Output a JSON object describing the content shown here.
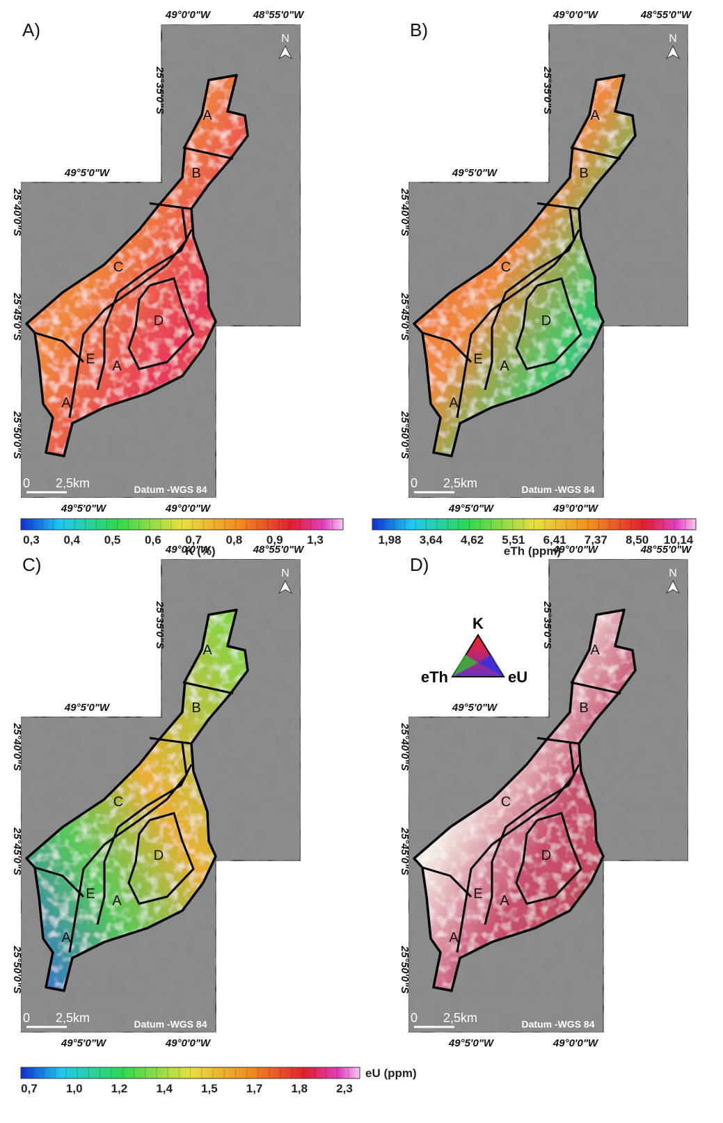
{
  "panels": [
    {
      "label": "A)",
      "top": [
        "49°0'0\"W",
        "48°55'0\"W"
      ],
      "inner_lon": "49°5'0\"W",
      "lat_right": "25°35'0\"S",
      "lat_left": [
        "25°40'0\"S",
        "25°45'0\"S",
        "25°50'0\"S"
      ],
      "bottom": [
        "49°5'0\"W",
        "49°0'0\"W"
      ],
      "scale": [
        "0",
        "2,5km"
      ],
      "datum": "Datum -WGS 84",
      "north": "N",
      "units": [
        "A",
        "B",
        "C",
        "D",
        "E",
        "A",
        "A"
      ]
    },
    {
      "label": "B)",
      "top": [
        "49°0'0\"W",
        "48°55'0\"W"
      ],
      "inner_lon": "49°5'0\"W",
      "lat_right": "25°35'0\"S",
      "lat_left": [
        "25°40'0\"S",
        "25°45'0\"S",
        "25°50'0\"S"
      ],
      "bottom": [
        "49°5'0\"W",
        "49°0'0\"W"
      ],
      "scale": [
        "0",
        "2,5km"
      ],
      "datum": "Datum -WGS 84",
      "north": "N",
      "units": [
        "A",
        "B",
        "C",
        "D",
        "E",
        "A",
        "A"
      ]
    },
    {
      "label": "C)",
      "top": [
        "49°0'0\"W",
        "48°55'0\"W"
      ],
      "inner_lon": "49°5'0\"W",
      "lat_right": "25°35'0\"S",
      "lat_left": [
        "25°40'0\"S",
        "25°45'0\"S",
        "25°50'0\"S"
      ],
      "bottom": [
        "49°5'0\"W",
        "49°0'0\"W"
      ],
      "scale": [
        "0",
        "2,5km"
      ],
      "datum": "Datum -WGS 84",
      "north": "N",
      "units": [
        "A",
        "B",
        "C",
        "D",
        "E",
        "A",
        "A"
      ]
    },
    {
      "label": "D)",
      "top": [
        "49°0'0\"W",
        "48°55'0\"W"
      ],
      "inner_lon": "49°5'0\"W",
      "lat_right": "25°35'0\"S",
      "lat_left": [
        "25°40'0\"S",
        "25°45'0\"S",
        "25°50'0\"S"
      ],
      "bottom": [
        "49°5'0\"W",
        "49°0'0\"W"
      ],
      "scale": [
        "0",
        "2,5km"
      ],
      "datum": "Datum -WGS 84",
      "north": "N",
      "units": [
        "A",
        "B",
        "C",
        "D",
        "E",
        "A",
        "A"
      ]
    }
  ],
  "colorbars": [
    {
      "title": "K (%)",
      "ticks": [
        "0,3",
        "0,4",
        "0,5",
        "0,6",
        "0,7",
        "0,8",
        "0,9",
        "1,3"
      ]
    },
    {
      "title": "eTh (ppm)",
      "ticks": [
        "1,98",
        "3,64",
        "4,62",
        "5,51",
        "6,41",
        "7,37",
        "8,50",
        "10,14"
      ]
    },
    {
      "title": "eU (ppm)",
      "ticks": [
        "0,7",
        "1,0",
        "1,2",
        "1,4",
        "1,5",
        "1,7",
        "1,8",
        "2,3"
      ]
    }
  ],
  "ternary": {
    "top": "K",
    "left": "eTh",
    "right": "eU"
  }
}
